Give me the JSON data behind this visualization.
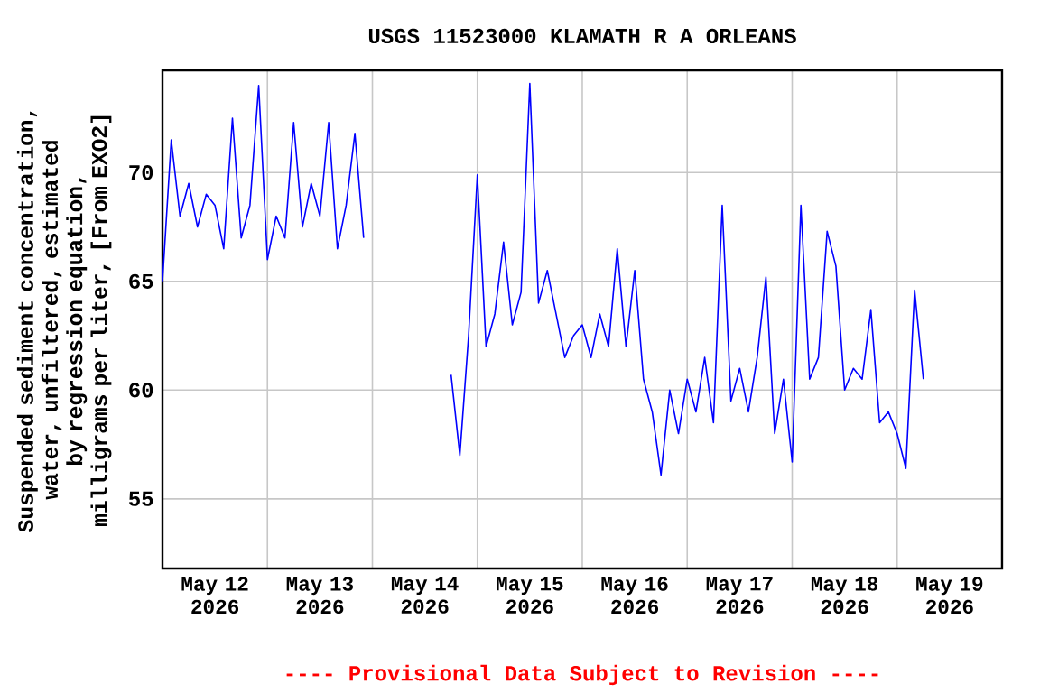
{
  "chart_data": {
    "type": "line",
    "title": "USGS 11523000 KLAMATH R A ORLEANS",
    "ylabel": "Suspended sediment concentration, water, unfiltered, estimated by regression equation, milligrams per liter, [From EXO2]",
    "annotations": [
      "---- Provisional Data Subject to Revision ----"
    ],
    "x": [
      "2026-05-12T00:00",
      "2026-05-12T02:00",
      "2026-05-12T04:00",
      "2026-05-12T06:00",
      "2026-05-12T08:00",
      "2026-05-12T10:00",
      "2026-05-12T12:00",
      "2026-05-12T14:00",
      "2026-05-12T16:00",
      "2026-05-12T18:00",
      "2026-05-12T20:00",
      "2026-05-12T22:00",
      "2026-05-13T00:00",
      "2026-05-13T02:00",
      "2026-05-13T04:00",
      "2026-05-13T06:00",
      "2026-05-13T08:00",
      "2026-05-13T10:00",
      "2026-05-13T12:00",
      "2026-05-13T14:00",
      "2026-05-13T16:00",
      "2026-05-13T18:00",
      "2026-05-13T20:00",
      "2026-05-13T22:00",
      "2026-05-14T08:00",
      "2026-05-14T18:00",
      "2026-05-14T20:00",
      "2026-05-14T22:00",
      "2026-05-15T00:00",
      "2026-05-15T02:00",
      "2026-05-15T04:00",
      "2026-05-15T06:00",
      "2026-05-15T08:00",
      "2026-05-15T10:00",
      "2026-05-15T12:00",
      "2026-05-15T14:00",
      "2026-05-15T16:00",
      "2026-05-15T18:00",
      "2026-05-15T20:00",
      "2026-05-15T22:00",
      "2026-05-16T00:00",
      "2026-05-16T02:00",
      "2026-05-16T04:00",
      "2026-05-16T06:00",
      "2026-05-16T08:00",
      "2026-05-16T10:00",
      "2026-05-16T12:00",
      "2026-05-16T14:00",
      "2026-05-16T16:00",
      "2026-05-16T18:00",
      "2026-05-16T20:00",
      "2026-05-16T22:00",
      "2026-05-17T00:00",
      "2026-05-17T02:00",
      "2026-05-17T04:00",
      "2026-05-17T06:00",
      "2026-05-17T08:00",
      "2026-05-17T10:00",
      "2026-05-17T12:00",
      "2026-05-17T14:00",
      "2026-05-17T16:00",
      "2026-05-17T18:00",
      "2026-05-17T20:00",
      "2026-05-17T22:00",
      "2026-05-18T00:00",
      "2026-05-18T02:00",
      "2026-05-18T04:00",
      "2026-05-18T06:00",
      "2026-05-18T08:00",
      "2026-05-18T10:00",
      "2026-05-18T12:00",
      "2026-05-18T14:00",
      "2026-05-18T16:00",
      "2026-05-18T18:00",
      "2026-05-18T20:00",
      "2026-05-18T22:00",
      "2026-05-19T00:00",
      "2026-05-19T02:00",
      "2026-05-19T04:00",
      "2026-05-19T06:00"
    ],
    "series": [
      {
        "color": "#0000ff",
        "values": [
          65.0,
          71.5,
          68.0,
          69.5,
          67.5,
          69.0,
          68.5,
          66.5,
          72.5,
          67.0,
          68.5,
          74.0,
          66.0,
          68.0,
          67.0,
          72.3,
          67.5,
          69.5,
          68.0,
          72.3,
          66.5,
          68.5,
          71.8,
          67.0,
          null,
          60.7,
          57.0,
          62.5,
          69.9,
          62.0,
          63.5,
          66.8,
          63.0,
          64.5,
          74.1,
          64.0,
          65.5,
          63.5,
          61.5,
          62.5,
          63.0,
          61.5,
          63.5,
          62.0,
          66.5,
          62.0,
          65.5,
          60.5,
          59.0,
          56.1,
          60.0,
          58.0,
          60.5,
          59.0,
          61.5,
          58.5,
          68.5,
          59.5,
          61.0,
          59.0,
          61.5,
          65.2,
          58.0,
          60.5,
          56.7,
          68.5,
          60.5,
          61.5,
          67.3,
          65.7,
          60.0,
          61.0,
          60.5,
          63.7,
          58.5,
          59.0,
          58.0,
          56.4,
          64.6,
          60.5
        ]
      }
    ],
    "xlim": [
      "2026-05-12",
      "2026-05-20"
    ],
    "xticks": [
      {
        "value": "2026-05-12T12:00",
        "label": "May 12 2026"
      },
      {
        "value": "2026-05-13T12:00",
        "label": "May 13 2026"
      },
      {
        "value": "2026-05-14T12:00",
        "label": "May 14 2026"
      },
      {
        "value": "2026-05-15T12:00",
        "label": "May 15 2026"
      },
      {
        "value": "2026-05-16T12:00",
        "label": "May 16 2026"
      },
      {
        "value": "2026-05-17T12:00",
        "label": "May 17 2026"
      },
      {
        "value": "2026-05-18T12:00",
        "label": "May 18 2026"
      },
      {
        "value": "2026-05-19T12:00",
        "label": "May 19 2026"
      },
      {
        "value": "2026-05-13",
        "label": null
      },
      {
        "value": "2026-05-14",
        "label": null
      },
      {
        "value": "2026-05-15",
        "label": null
      },
      {
        "value": "2026-05-16",
        "label": null
      },
      {
        "value": "2026-05-17",
        "label": null
      },
      {
        "value": "2026-05-18",
        "label": null
      },
      {
        "value": "2026-05-19",
        "label": null
      }
    ],
    "ylim": [
      51.8,
      74.7
    ],
    "yticks": [
      55,
      60,
      65,
      70
    ],
    "grid": true
  }
}
